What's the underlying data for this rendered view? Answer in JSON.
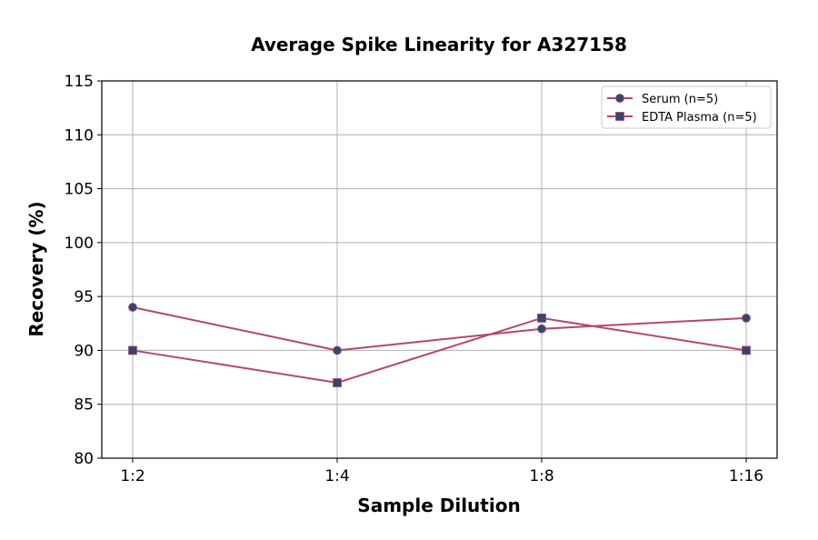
{
  "chart_data": {
    "type": "line",
    "title": "Average Spike Linearity for A327158",
    "xlabel": "Sample Dilution",
    "ylabel": "Recovery (%)",
    "categories": [
      "1:2",
      "1:4",
      "1:8",
      "1:16"
    ],
    "ylim": [
      80,
      115
    ],
    "yticks": [
      80,
      85,
      90,
      95,
      100,
      105,
      110,
      115
    ],
    "grid": true,
    "legend_position": "top-right",
    "series": [
      {
        "name": "Serum (n=5)",
        "marker": "circle",
        "values": [
          94,
          90,
          92,
          93
        ]
      },
      {
        "name": "EDTA Plasma (n=5)",
        "marker": "square",
        "values": [
          90,
          87,
          93,
          90
        ]
      }
    ],
    "colors": {
      "line": "#b5466e",
      "marker": "#2d4a6e",
      "grid": "#b0b0b0"
    }
  }
}
